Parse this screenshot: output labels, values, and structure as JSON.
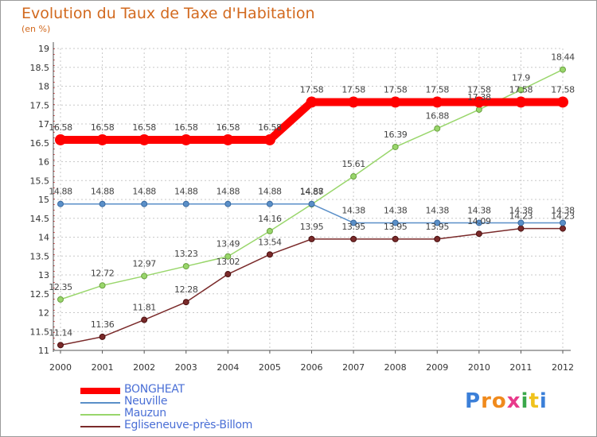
{
  "chart_data": {
    "type": "line",
    "title": "Evolution du Taux de Taxe d'Habitation",
    "ylabel": "(en %)",
    "xlabel": "",
    "x": [
      "2000",
      "2001",
      "2002",
      "2003",
      "2004",
      "2005",
      "2006",
      "2007",
      "2008",
      "2009",
      "2010",
      "2011",
      "2012"
    ],
    "ylim": [
      11,
      19
    ],
    "yticks": [
      "11",
      "11.5",
      "12",
      "12.5",
      "13",
      "13.5",
      "14",
      "14.5",
      "15",
      "15.5",
      "16",
      "16.5",
      "17",
      "17.5",
      "18",
      "18.5",
      "19"
    ],
    "series": [
      {
        "name": "BONGHEAT",
        "color": "#ff0000",
        "values": [
          16.58,
          16.58,
          16.58,
          16.58,
          16.58,
          16.58,
          17.58,
          17.58,
          17.58,
          17.58,
          17.58,
          17.58,
          17.58
        ],
        "labels": [
          "16.58",
          "16.58",
          "16.58",
          "16.58",
          "16.58",
          "16.58",
          "17.58",
          "17.58",
          "17.58",
          "17.58",
          "17.58",
          "17.58",
          "17.58"
        ]
      },
      {
        "name": "Neuville",
        "color": "#5a8fc8",
        "values": [
          14.88,
          14.88,
          14.88,
          14.88,
          14.88,
          14.88,
          14.88,
          14.38,
          14.38,
          14.38,
          14.38,
          14.38,
          14.38
        ],
        "labels": [
          "14.88",
          "14.88",
          "14.88",
          "14.88",
          "14.88",
          "14.88",
          "14.88",
          "14.38",
          "14.38",
          "14.38",
          "14.38",
          "14.38",
          "14.38"
        ]
      },
      {
        "name": "Mauzun",
        "color": "#99d66b",
        "values": [
          12.35,
          12.72,
          12.97,
          13.23,
          13.49,
          14.16,
          14.87,
          15.61,
          16.39,
          16.88,
          17.38,
          17.9,
          18.44
        ],
        "labels": [
          "12.35",
          "12.72",
          "12.97",
          "13.23",
          "13.49",
          "14.16",
          "14.87",
          "15.61",
          "16.39",
          "16.88",
          "17.38",
          "17.9",
          "18.44"
        ]
      },
      {
        "name": "Egliseneuve-près-Billom",
        "color": "#7a2a2a",
        "values": [
          11.14,
          11.36,
          11.81,
          12.28,
          13.02,
          13.54,
          13.95,
          13.95,
          13.95,
          13.95,
          14.09,
          14.23,
          14.23
        ],
        "labels": [
          "11.14",
          "11.36",
          "11.81",
          "12.28",
          "13.02",
          "13.54",
          "13.95",
          "13.95",
          "13.95",
          "13.95",
          "14.09",
          "14.23",
          "14.23"
        ]
      }
    ]
  },
  "header": {
    "title": "Evolution du Taux de Taxe d'Habitation",
    "subtitle": "(en %)"
  },
  "legend": {
    "items": [
      "BONGHEAT",
      "Neuville",
      "Mauzun",
      "Egliseneuve-près-Billom"
    ]
  },
  "logo": {
    "letters": [
      "P",
      "r",
      "o",
      "x",
      "i",
      "t",
      "i"
    ],
    "colors": [
      "#3b7fd8",
      "#f08a1c",
      "#f08a1c",
      "#e83a8b",
      "#3aa84a",
      "#f0c21c",
      "#3b7fd8"
    ]
  }
}
